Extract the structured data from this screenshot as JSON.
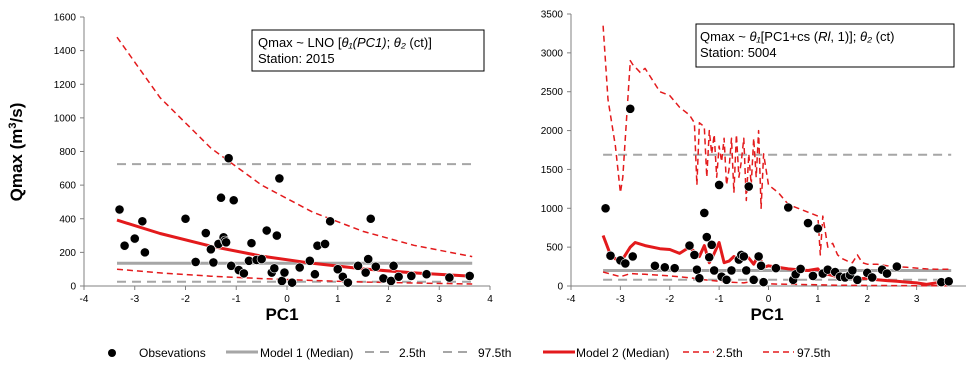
{
  "chart_data": [
    {
      "type": "scatter",
      "xlabel": "PC1",
      "ylabel": "Qmax (m³/s)",
      "xlim": [
        -4,
        4
      ],
      "ylim": [
        0,
        1600
      ],
      "xticks": [
        -4,
        -3,
        -2,
        -1,
        0,
        1,
        2,
        3,
        4
      ],
      "yticks": [
        0,
        200,
        400,
        600,
        800,
        1000,
        1200,
        1400,
        1600
      ],
      "annotation": {
        "line1_prefix": "Qmax ~ LNO [",
        "theta1": "θ₁",
        "line1_mid": "(PC1)",
        "sep": "; ",
        "theta2": "θ₂",
        "line1_suffix": " (ct)]",
        "line2": "Station: 2015"
      },
      "observations": [
        [
          -3.3,
          455
        ],
        [
          -3.2,
          240
        ],
        [
          -3.0,
          282
        ],
        [
          -2.85,
          385
        ],
        [
          -2.8,
          200
        ],
        [
          -2.0,
          400
        ],
        [
          -1.8,
          143
        ],
        [
          -1.6,
          315
        ],
        [
          -1.5,
          218
        ],
        [
          -1.45,
          140
        ],
        [
          -1.35,
          250
        ],
        [
          -1.3,
          525
        ],
        [
          -1.25,
          290
        ],
        [
          -1.22,
          270
        ],
        [
          -1.2,
          260
        ],
        [
          -1.15,
          760
        ],
        [
          -1.1,
          120
        ],
        [
          -1.05,
          510
        ],
        [
          -0.95,
          95
        ],
        [
          -0.85,
          75
        ],
        [
          -0.75,
          150
        ],
        [
          -0.7,
          255
        ],
        [
          -0.6,
          155
        ],
        [
          -0.5,
          160
        ],
        [
          -0.4,
          330
        ],
        [
          -0.3,
          80
        ],
        [
          -0.25,
          105
        ],
        [
          -0.2,
          300
        ],
        [
          -0.15,
          640
        ],
        [
          -0.1,
          30
        ],
        [
          -0.05,
          80
        ],
        [
          0.1,
          20
        ],
        [
          0.25,
          110
        ],
        [
          0.45,
          150
        ],
        [
          0.55,
          70
        ],
        [
          0.6,
          240
        ],
        [
          0.75,
          250
        ],
        [
          0.85,
          385
        ],
        [
          1.0,
          100
        ],
        [
          1.1,
          55
        ],
        [
          1.2,
          20
        ],
        [
          1.4,
          120
        ],
        [
          1.55,
          80
        ],
        [
          1.6,
          160
        ],
        [
          1.65,
          400
        ],
        [
          1.75,
          115
        ],
        [
          1.9,
          45
        ],
        [
          2.05,
          30
        ],
        [
          2.1,
          120
        ],
        [
          2.2,
          55
        ],
        [
          2.45,
          60
        ],
        [
          2.75,
          70
        ],
        [
          3.2,
          50
        ],
        [
          3.6,
          60
        ]
      ],
      "series": [
        {
          "name": "Model 1 (Median)",
          "x": [
            -3.35,
            3.65
          ],
          "values": [
            135,
            135
          ]
        },
        {
          "name": "Model 1 2.5th",
          "x": [
            -3.35,
            3.65
          ],
          "values": [
            25,
            25
          ]
        },
        {
          "name": "Model 1 97.5th",
          "x": [
            -3.35,
            3.65
          ],
          "values": [
            725,
            725
          ]
        },
        {
          "name": "Model 2 (Median)",
          "x": [
            -3.35,
            -2.5,
            -1.5,
            -0.5,
            0.5,
            1.5,
            2.5,
            3.65
          ],
          "values": [
            392,
            312,
            237,
            178,
            135,
            102,
            78,
            58
          ]
        },
        {
          "name": "Model 2 2.5th",
          "x": [
            -3.35,
            -2.5,
            -1.5,
            -0.5,
            0.5,
            1.5,
            2.5,
            3.65
          ],
          "values": [
            100,
            78,
            58,
            44,
            33,
            24,
            18,
            12
          ]
        },
        {
          "name": "Model 2 97.5th",
          "x": [
            -3.35,
            -2.5,
            -1.5,
            -0.5,
            0.5,
            1.5,
            2.5,
            3.65
          ],
          "values": [
            1480,
            1120,
            820,
            600,
            440,
            325,
            242,
            175
          ]
        }
      ]
    },
    {
      "type": "scatter",
      "xlabel": "PC1",
      "ylabel": "",
      "xlim": [
        -4,
        4
      ],
      "ylim": [
        0,
        3500
      ],
      "xticks": [
        -4,
        -3,
        -2,
        -1,
        0,
        1,
        2,
        3
      ],
      "yticks": [
        0,
        500,
        1000,
        1500,
        2000,
        2500,
        3000,
        3500
      ],
      "annotation": {
        "line1_prefix": "Qmax ~  ",
        "theta1": "θ₁",
        "line1_mid": "[PC1+cs (",
        "rl": "Rl",
        "line1_mid2": ", 1)]",
        "sep": "; ",
        "theta2": "θ₂",
        "line1_suffix": " (ct)",
        "line2": "Station: 5004"
      },
      "observations": [
        [
          -3.3,
          1000
        ],
        [
          -3.2,
          390
        ],
        [
          -3.0,
          330
        ],
        [
          -2.9,
          290
        ],
        [
          -2.8,
          2280
        ],
        [
          -2.75,
          380
        ],
        [
          -2.3,
          260
        ],
        [
          -2.1,
          240
        ],
        [
          -1.9,
          230
        ],
        [
          -1.6,
          520
        ],
        [
          -1.5,
          400
        ],
        [
          -1.45,
          210
        ],
        [
          -1.4,
          100
        ],
        [
          -1.3,
          940
        ],
        [
          -1.25,
          630
        ],
        [
          -1.2,
          370
        ],
        [
          -1.15,
          530
        ],
        [
          -1.1,
          200
        ],
        [
          -1.0,
          1300
        ],
        [
          -0.95,
          120
        ],
        [
          -0.85,
          80
        ],
        [
          -0.75,
          200
        ],
        [
          -0.6,
          340
        ],
        [
          -0.55,
          400
        ],
        [
          -0.5,
          380
        ],
        [
          -0.45,
          200
        ],
        [
          -0.4,
          1280
        ],
        [
          -0.3,
          80
        ],
        [
          -0.2,
          380
        ],
        [
          -0.15,
          260
        ],
        [
          -0.1,
          50
        ],
        [
          0.15,
          230
        ],
        [
          0.4,
          1010
        ],
        [
          0.5,
          80
        ],
        [
          0.55,
          150
        ],
        [
          0.65,
          220
        ],
        [
          0.8,
          810
        ],
        [
          0.9,
          130
        ],
        [
          1.0,
          740
        ],
        [
          1.1,
          160
        ],
        [
          1.2,
          210
        ],
        [
          1.35,
          180
        ],
        [
          1.45,
          120
        ],
        [
          1.55,
          110
        ],
        [
          1.65,
          140
        ],
        [
          1.7,
          200
        ],
        [
          1.8,
          80
        ],
        [
          2.0,
          170
        ],
        [
          2.1,
          110
        ],
        [
          2.3,
          210
        ],
        [
          2.4,
          160
        ],
        [
          2.6,
          250
        ],
        [
          3.5,
          50
        ],
        [
          3.65,
          60
        ]
      ],
      "series": [
        {
          "name": "Model 1 (Median)",
          "x": [
            -3.35,
            3.7
          ],
          "values": [
            200,
            200
          ]
        },
        {
          "name": "Model 1 2.5th",
          "x": [
            -3.35,
            3.7
          ],
          "values": [
            80,
            80
          ]
        },
        {
          "name": "Model 1 97.5th",
          "x": [
            -3.35,
            3.7
          ],
          "values": [
            1690,
            1690
          ]
        },
        {
          "name": "Model 2 (Median)",
          "x": [
            -3.35,
            -3.2,
            -3.0,
            -2.8,
            -2.7,
            -2.5,
            -2.2,
            -2.0,
            -1.8,
            -1.6,
            -1.4,
            -1.3,
            -1.2,
            -1.1,
            -1.0,
            -0.9,
            -0.8,
            -0.7,
            -0.6,
            -0.5,
            -0.4,
            -0.3,
            -0.2,
            -0.1,
            0.0,
            0.2,
            0.4,
            0.6,
            0.8,
            1.0,
            1.1,
            1.2,
            1.4,
            1.6,
            1.8,
            2.0,
            2.2,
            2.4,
            2.6,
            2.8,
            3.0,
            3.2,
            3.4,
            3.7
          ],
          "values": [
            650,
            400,
            300,
            500,
            560,
            520,
            480,
            470,
            420,
            500,
            380,
            520,
            300,
            420,
            560,
            300,
            320,
            380,
            340,
            400,
            360,
            280,
            400,
            240,
            260,
            240,
            220,
            210,
            200,
            220,
            130,
            150,
            120,
            110,
            90,
            100,
            80,
            70,
            60,
            50,
            40,
            20,
            40,
            25
          ]
        },
        {
          "name": "Model 2 2.5th",
          "x": [
            -3.35,
            -3.0,
            -2.8,
            -2.5,
            -2.0,
            -1.5,
            -1.3,
            -1.0,
            -0.8,
            -0.5,
            -0.3,
            -0.1,
            0.2,
            0.6,
            1.0,
            1.4,
            1.8,
            2.2,
            2.6,
            3.0,
            3.4,
            3.7
          ],
          "values": [
            180,
            120,
            160,
            150,
            130,
            100,
            80,
            60,
            50,
            40,
            60,
            30,
            25,
            20,
            15,
            10,
            8,
            6,
            5,
            4,
            3,
            3
          ]
        },
        {
          "name": "Model 2 97.5th",
          "x": [
            -3.35,
            -3.25,
            -3.1,
            -3.0,
            -2.95,
            -2.8,
            -2.75,
            -2.6,
            -2.5,
            -2.3,
            -2.2,
            -2.0,
            -1.8,
            -1.6,
            -1.5,
            -1.45,
            -1.4,
            -1.3,
            -1.25,
            -1.2,
            -1.15,
            -1.1,
            -1.05,
            -1.0,
            -0.95,
            -0.9,
            -0.85,
            -0.8,
            -0.75,
            -0.7,
            -0.65,
            -0.6,
            -0.55,
            -0.5,
            -0.45,
            -0.4,
            -0.35,
            -0.3,
            -0.25,
            -0.2,
            -0.15,
            -0.1,
            0.0,
            0.2,
            0.4,
            0.6,
            0.8,
            1.0,
            1.05,
            1.1,
            1.2,
            1.3,
            1.4,
            1.5,
            1.6,
            1.7,
            1.8,
            1.9,
            2.0,
            2.2,
            2.4,
            2.6,
            2.8,
            3.0,
            3.2,
            3.4,
            3.7
          ],
          "values": [
            3350,
            2400,
            1800,
            1200,
            1400,
            2900,
            2850,
            2750,
            2800,
            2600,
            2500,
            2450,
            2300,
            2200,
            2100,
            1300,
            2100,
            2050,
            1400,
            2000,
            1700,
            1950,
            1400,
            1800,
            1600,
            1900,
            1300,
            1500,
            1900,
            1200,
            1950,
            1400,
            1600,
            1900,
            1100,
            1700,
            1300,
            1900,
            1400,
            2000,
            1000,
            1700,
            1300,
            1200,
            1050,
            1000,
            950,
            900,
            400,
            900,
            500,
            550,
            400,
            350,
            320,
            300,
            400,
            300,
            280,
            280,
            260,
            250,
            240,
            230,
            220,
            215,
            215
          ]
        }
      ]
    }
  ],
  "legend": {
    "items": [
      {
        "key": "obs",
        "label": "Obsevations"
      },
      {
        "key": "m1_med",
        "label": "Model 1 (Median)"
      },
      {
        "key": "m1_lo",
        "label": "2.5th"
      },
      {
        "key": "m1_hi",
        "label": "97.5th"
      },
      {
        "key": "m2_med",
        "label": "Model 2 (Median)"
      },
      {
        "key": "m2_lo",
        "label": "2.5th"
      },
      {
        "key": "m2_hi",
        "label": "97.5th"
      }
    ]
  },
  "colors": {
    "model1": "#a6a6a6",
    "model2": "#e31a1c",
    "observation": "#000000"
  }
}
